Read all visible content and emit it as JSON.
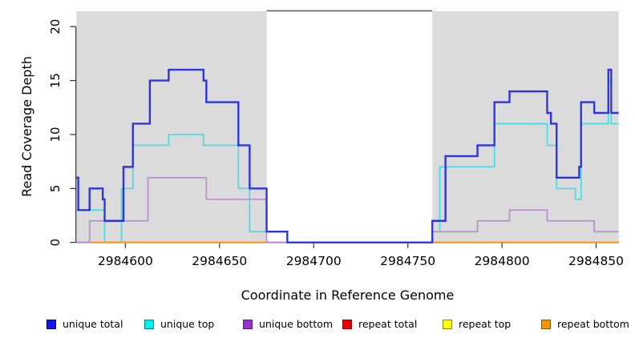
{
  "figure": {
    "x_axis_label": "Coordinate in Reference Genome",
    "y_axis_label": "Read Coverage Depth",
    "background_color": "#ffffff",
    "axis_color": "#2e2e2e",
    "text_color": "#000000"
  },
  "chart_data": {
    "type": "line",
    "step": true,
    "title": "",
    "xlabel": "Coordinate in Reference Genome",
    "ylabel": "Read Coverage Depth",
    "xlim": [
      2984574,
      2984862
    ],
    "ylim": [
      0,
      21
    ],
    "x_ticks": [
      2984600,
      2984650,
      2984700,
      2984750,
      2984800,
      2984850
    ],
    "y_ticks": [
      0,
      5,
      10,
      15,
      20
    ],
    "grid": false,
    "legend_position": "bottom",
    "background_regions": [
      {
        "name": "covered-region-left",
        "x0": 2984574,
        "x1": 2984675,
        "color": "#DBDBDB"
      },
      {
        "name": "covered-region-right",
        "x0": 2984763,
        "x1": 2984862,
        "color": "#DBDBDB"
      }
    ],
    "gap_top_edge": {
      "x0": 2984675,
      "x1": 2984763,
      "color": "#5a5a5a"
    },
    "draw_order": [
      "repeat-total",
      "repeat-top",
      "unique-top",
      "repeat-bottom",
      "unique-bottom",
      "unique-total"
    ],
    "series": [
      {
        "id": "unique-total",
        "name": "unique total",
        "color": "#2B36DF",
        "width": 2.4,
        "legend_fill": "#1414F0",
        "legend_border": "#000080",
        "points": [
          [
            2984574,
            6
          ],
          [
            2984575,
            3
          ],
          [
            2984581,
            5
          ],
          [
            2984588,
            4
          ],
          [
            2984589,
            2
          ],
          [
            2984599,
            7
          ],
          [
            2984604,
            11
          ],
          [
            2984613,
            15
          ],
          [
            2984623,
            16
          ],
          [
            2984641.5,
            15
          ],
          [
            2984643,
            13
          ],
          [
            2984660,
            9
          ],
          [
            2984666,
            5
          ],
          [
            2984675,
            1
          ],
          [
            2984686,
            0
          ],
          [
            2984763,
            2
          ],
          [
            2984770,
            8
          ],
          [
            2984787,
            9
          ],
          [
            2984796,
            13
          ],
          [
            2984804,
            14
          ],
          [
            2984824,
            12
          ],
          [
            2984826,
            11
          ],
          [
            2984829,
            6
          ],
          [
            2984841,
            7
          ],
          [
            2984842,
            13
          ],
          [
            2984849,
            12
          ],
          [
            2984856.5,
            16
          ],
          [
            2984858,
            12
          ]
        ]
      },
      {
        "id": "unique-top",
        "name": "unique top",
        "color": "#45DCE6",
        "width": 1.7,
        "legend_fill": "#00F0F0",
        "legend_border": "#008B8B",
        "points": [
          [
            2984574,
            3
          ],
          [
            2984589,
            0
          ],
          [
            2984598,
            5
          ],
          [
            2984604,
            9
          ],
          [
            2984623,
            10
          ],
          [
            2984641.5,
            9
          ],
          [
            2984660,
            5
          ],
          [
            2984666,
            1
          ],
          [
            2984686,
            0
          ],
          [
            2984763,
            1
          ],
          [
            2984767,
            7
          ],
          [
            2984796,
            11
          ],
          [
            2984824,
            9
          ],
          [
            2984829,
            5
          ],
          [
            2984839,
            4
          ],
          [
            2984842,
            11
          ],
          [
            2984856.5,
            15
          ],
          [
            2984858,
            11
          ]
        ]
      },
      {
        "id": "unique-bottom",
        "name": "unique bottom",
        "color": "#BA8CD6",
        "width": 1.7,
        "legend_fill": "#9B30D0",
        "legend_border": "#551A8B",
        "points": [
          [
            2984574,
            0
          ],
          [
            2984581,
            2
          ],
          [
            2984612,
            6
          ],
          [
            2984643,
            4
          ],
          [
            2984675,
            0
          ],
          [
            2984763,
            1
          ],
          [
            2984787,
            2
          ],
          [
            2984804,
            3
          ],
          [
            2984824,
            2
          ],
          [
            2984849,
            1
          ]
        ]
      },
      {
        "id": "repeat-total",
        "name": "repeat total",
        "color": "#DD2222",
        "width": 1.5,
        "legend_fill": "#EE0000",
        "legend_border": "#8B0000",
        "points": [
          [
            2984574,
            0
          ]
        ]
      },
      {
        "id": "repeat-top",
        "name": "repeat top",
        "color": "#F2F200",
        "width": 1.5,
        "legend_fill": "#FFFF00",
        "legend_border": "#8B8B00",
        "points": [
          [
            2984574,
            0
          ]
        ]
      },
      {
        "id": "repeat-bottom",
        "name": "repeat bottom",
        "color": "#FF9414",
        "width": 2.2,
        "legend_fill": "#F59400",
        "legend_border": "#8B5A00",
        "points": [
          [
            2984574,
            0
          ]
        ]
      }
    ]
  }
}
